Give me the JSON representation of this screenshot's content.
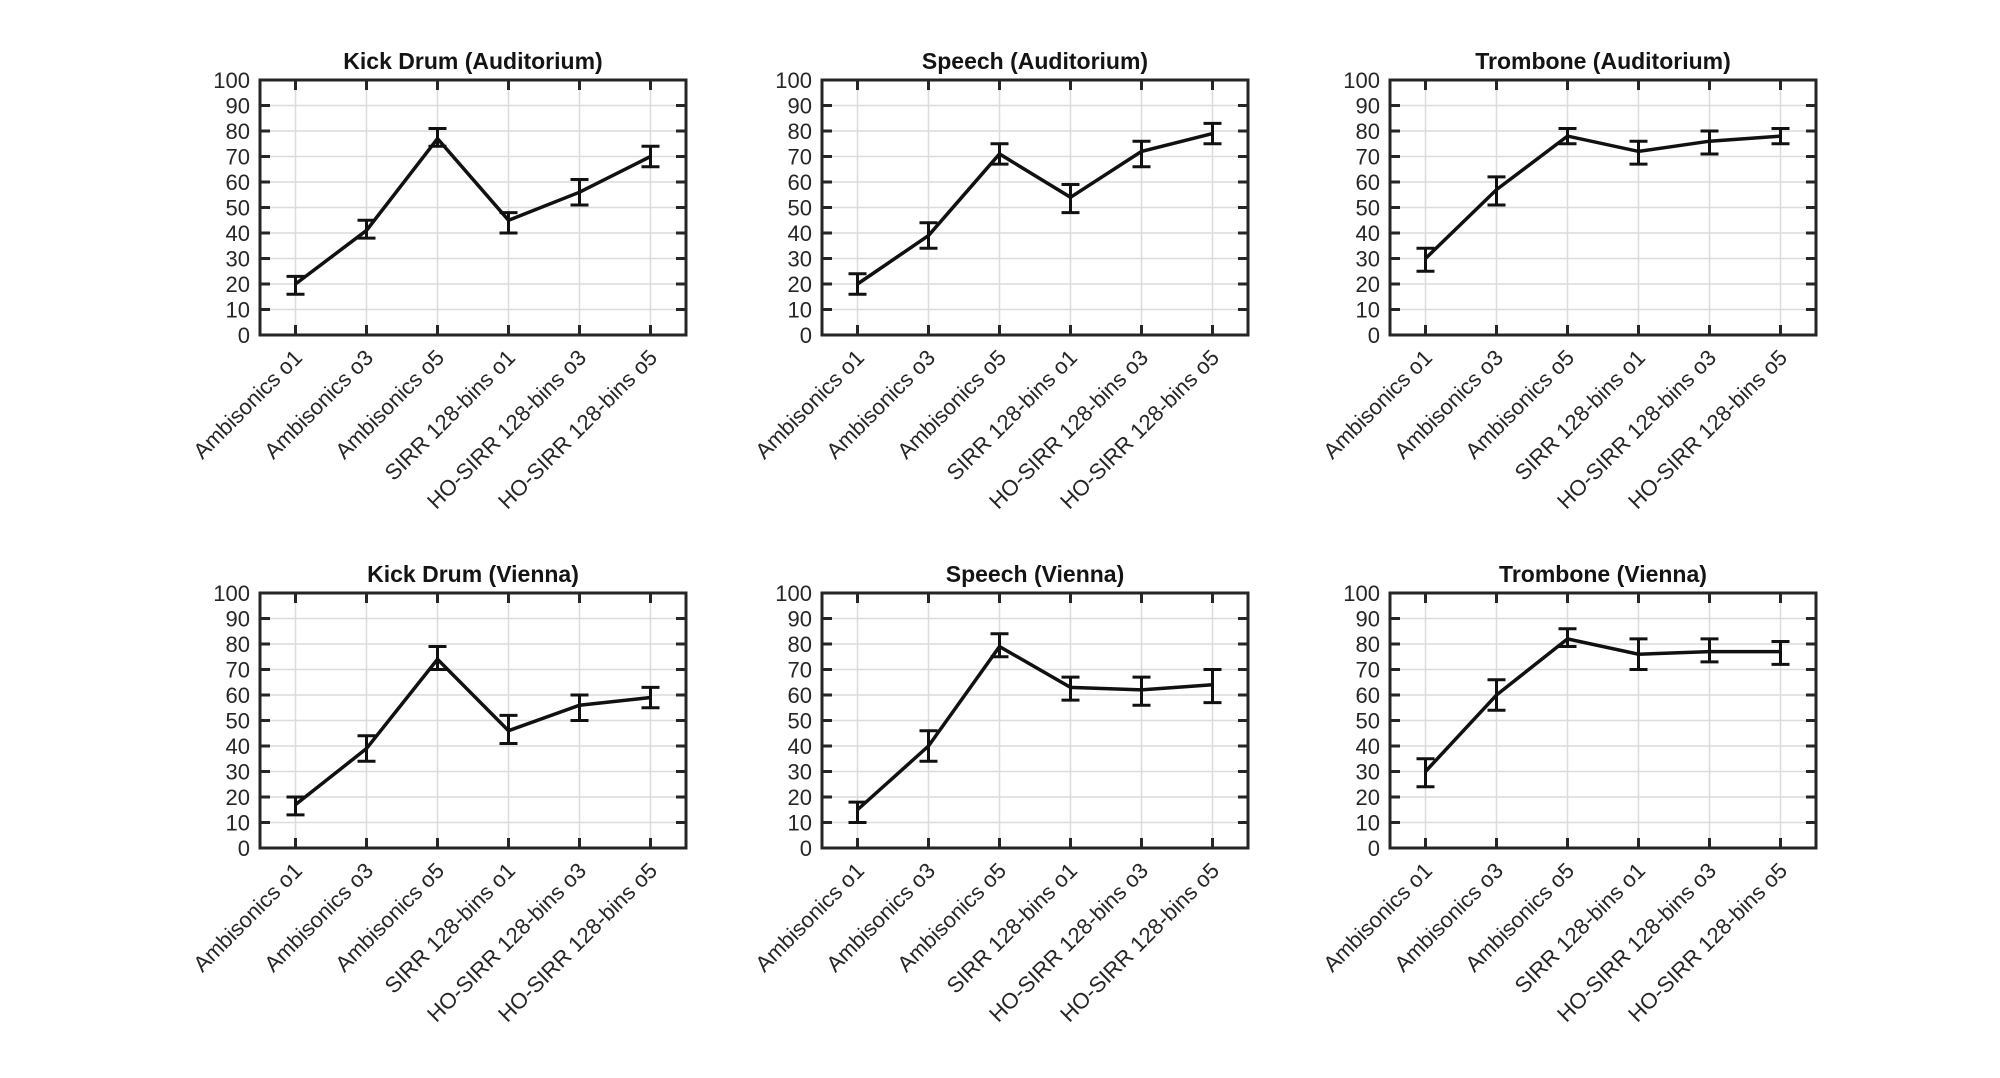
{
  "figure": {
    "background": "#ffffff",
    "axis_color": "#262626",
    "grid_color": "#dcdcdc",
    "line_color": "#111111",
    "rows": 2,
    "cols": 3
  },
  "chart_data": [
    {
      "type": "line",
      "title": "Kick Drum (Auditorium)",
      "categories": [
        "Ambisonics o1",
        "Ambisonics o3",
        "Ambisonics o5",
        "SIRR 128-bins o1",
        "HO-SIRR 128-bins o3",
        "HO-SIRR 128-bins o5"
      ],
      "values": [
        20,
        41,
        77,
        45,
        56,
        70
      ],
      "err_low": [
        16,
        38,
        74,
        40,
        51,
        66
      ],
      "err_high": [
        23,
        45,
        81,
        48,
        61,
        74
      ],
      "ylim": [
        0,
        100
      ],
      "yticks": [
        0,
        10,
        20,
        30,
        40,
        50,
        60,
        70,
        80,
        90,
        100
      ],
      "grid": true,
      "error_bars": true
    },
    {
      "type": "line",
      "title": "Speech (Auditorium)",
      "categories": [
        "Ambisonics o1",
        "Ambisonics o3",
        "Ambisonics o5",
        "SIRR 128-bins o1",
        "HO-SIRR 128-bins o3",
        "HO-SIRR 128-bins o5"
      ],
      "values": [
        20,
        39,
        71,
        54,
        72,
        79
      ],
      "err_low": [
        16,
        34,
        67,
        48,
        66,
        75
      ],
      "err_high": [
        24,
        44,
        75,
        59,
        76,
        83
      ],
      "ylim": [
        0,
        100
      ],
      "yticks": [
        0,
        10,
        20,
        30,
        40,
        50,
        60,
        70,
        80,
        90,
        100
      ],
      "grid": true,
      "error_bars": true
    },
    {
      "type": "line",
      "title": "Trombone (Auditorium)",
      "categories": [
        "Ambisonics o1",
        "Ambisonics o3",
        "Ambisonics o5",
        "SIRR 128-bins o1",
        "HO-SIRR 128-bins o3",
        "HO-SIRR 128-bins o5"
      ],
      "values": [
        30,
        57,
        78,
        72,
        76,
        78
      ],
      "err_low": [
        25,
        51,
        75,
        67,
        71,
        75
      ],
      "err_high": [
        34,
        62,
        81,
        76,
        80,
        81
      ],
      "ylim": [
        0,
        100
      ],
      "yticks": [
        0,
        10,
        20,
        30,
        40,
        50,
        60,
        70,
        80,
        90,
        100
      ],
      "grid": true,
      "error_bars": true
    },
    {
      "type": "line",
      "title": "Kick Drum (Vienna)",
      "categories": [
        "Ambisonics o1",
        "Ambisonics o3",
        "Ambisonics o5",
        "SIRR 128-bins o1",
        "HO-SIRR 128-bins o3",
        "HO-SIRR 128-bins o5"
      ],
      "values": [
        17,
        39,
        74,
        46,
        56,
        59
      ],
      "err_low": [
        13,
        34,
        70,
        41,
        50,
        55
      ],
      "err_high": [
        20,
        44,
        79,
        52,
        60,
        63
      ],
      "ylim": [
        0,
        100
      ],
      "yticks": [
        0,
        10,
        20,
        30,
        40,
        50,
        60,
        70,
        80,
        90,
        100
      ],
      "grid": true,
      "error_bars": true
    },
    {
      "type": "line",
      "title": "Speech (Vienna)",
      "categories": [
        "Ambisonics o1",
        "Ambisonics o3",
        "Ambisonics o5",
        "SIRR 128-bins o1",
        "HO-SIRR 128-bins o3",
        "HO-SIRR 128-bins o5"
      ],
      "values": [
        15,
        40,
        79,
        63,
        62,
        64
      ],
      "err_low": [
        10,
        34,
        75,
        58,
        56,
        57
      ],
      "err_high": [
        18,
        46,
        84,
        67,
        67,
        70
      ],
      "ylim": [
        0,
        100
      ],
      "yticks": [
        0,
        10,
        20,
        30,
        40,
        50,
        60,
        70,
        80,
        90,
        100
      ],
      "grid": true,
      "error_bars": true
    },
    {
      "type": "line",
      "title": "Trombone (Vienna)",
      "categories": [
        "Ambisonics o1",
        "Ambisonics o3",
        "Ambisonics o5",
        "SIRR 128-bins o1",
        "HO-SIRR 128-bins o3",
        "HO-SIRR 128-bins o5"
      ],
      "values": [
        30,
        60,
        82,
        76,
        77,
        77
      ],
      "err_low": [
        24,
        54,
        79,
        70,
        73,
        72
      ],
      "err_high": [
        35,
        66,
        86,
        82,
        82,
        81
      ],
      "ylim": [
        0,
        100
      ],
      "yticks": [
        0,
        10,
        20,
        30,
        40,
        50,
        60,
        70,
        80,
        90,
        100
      ],
      "grid": true,
      "error_bars": true
    }
  ]
}
